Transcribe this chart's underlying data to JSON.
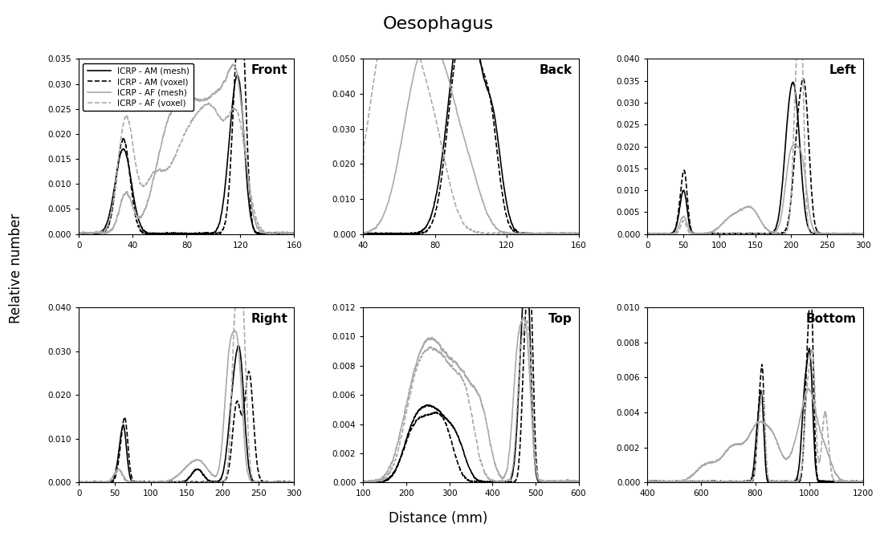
{
  "title": "Oesophagus",
  "xlabel": "Distance (mm)",
  "ylabel": "Relative number",
  "title_color": "black",
  "title_fontsize": 16,
  "subplots": [
    {
      "label": "Front",
      "xlim": [
        0,
        160
      ],
      "ylim": [
        0,
        0.035
      ],
      "xticks": [
        0,
        40,
        80,
        120,
        160
      ],
      "yticks": [
        0.0,
        0.005,
        0.01,
        0.015,
        0.02,
        0.025,
        0.03,
        0.035
      ]
    },
    {
      "label": "Back",
      "xlim": [
        40,
        160
      ],
      "ylim": [
        0.0,
        0.05
      ],
      "xticks": [
        40,
        80,
        120,
        160
      ],
      "yticks": [
        0.0,
        0.01,
        0.02,
        0.03,
        0.04,
        0.05
      ]
    },
    {
      "label": "Left",
      "xlim": [
        0,
        300
      ],
      "ylim": [
        0.0,
        0.04
      ],
      "xticks": [
        0,
        50,
        100,
        150,
        200,
        250,
        300
      ],
      "yticks": [
        0.0,
        0.005,
        0.01,
        0.015,
        0.02,
        0.025,
        0.03,
        0.035,
        0.04
      ]
    },
    {
      "label": "Right",
      "xlim": [
        0,
        300
      ],
      "ylim": [
        0.0,
        0.04
      ],
      "xticks": [
        0,
        50,
        100,
        150,
        200,
        250,
        300
      ],
      "yticks": [
        0.0,
        0.01,
        0.02,
        0.03,
        0.04
      ]
    },
    {
      "label": "Top",
      "xlim": [
        100,
        600
      ],
      "ylim": [
        0.0,
        0.012
      ],
      "xticks": [
        100,
        200,
        300,
        400,
        500,
        600
      ],
      "yticks": [
        0.0,
        0.002,
        0.004,
        0.006,
        0.008,
        0.01,
        0.012
      ]
    },
    {
      "label": "Bottom",
      "xlim": [
        400,
        1200
      ],
      "ylim": [
        0.0,
        0.01
      ],
      "xticks": [
        400,
        600,
        800,
        1000,
        1200
      ],
      "yticks": [
        0.0,
        0.002,
        0.004,
        0.006,
        0.008,
        0.01
      ]
    }
  ],
  "legend_labels": [
    "ICRP - AM (mesh)",
    "ICRP - AM (voxel)",
    "ICRP - AF (mesh)",
    "ICRP - AF (voxel)"
  ],
  "colors": [
    "#000000",
    "#000000",
    "#aaaaaa",
    "#aaaaaa"
  ],
  "linestyles": [
    "-",
    "--",
    "-",
    "--"
  ],
  "linewidths": [
    1.2,
    1.2,
    1.2,
    1.2
  ]
}
